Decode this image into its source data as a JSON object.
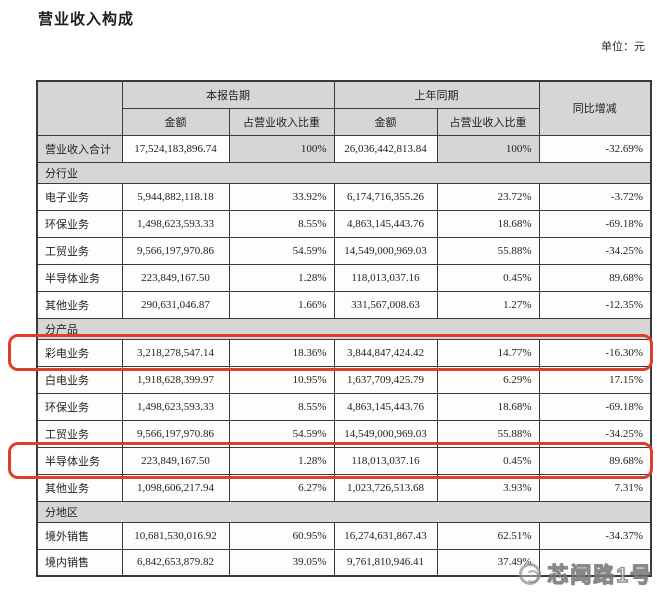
{
  "page": {
    "title": "营业收入构成",
    "unit_label": "单位：元"
  },
  "table": {
    "header": {
      "corner": "",
      "current_period": "本报告期",
      "prior_period": "上年同期",
      "yoy_change": "同比增减",
      "amount": "金额",
      "pct_of_revenue": "占营业收入比重"
    },
    "rows": [
      {
        "type": "total",
        "label": "营业收入合计",
        "amt1": "17,524,183,896.74",
        "pct1": "100%",
        "amt2": "26,036,442,813.84",
        "pct2": "100%",
        "chg": "-32.69%"
      },
      {
        "type": "section",
        "label": "分行业"
      },
      {
        "type": "data",
        "label": "电子业务",
        "amt1": "5,944,882,118.18",
        "pct1": "33.92%",
        "amt2": "6,174,716,355.26",
        "pct2": "23.72%",
        "chg": "-3.72%"
      },
      {
        "type": "data",
        "label": "环保业务",
        "amt1": "1,498,623,593.33",
        "pct1": "8.55%",
        "amt2": "4,863,145,443.76",
        "pct2": "18.68%",
        "chg": "-69.18%"
      },
      {
        "type": "data",
        "label": "工贸业务",
        "amt1": "9,566,197,970.86",
        "pct1": "54.59%",
        "amt2": "14,549,000,969.03",
        "pct2": "55.88%",
        "chg": "-34.25%"
      },
      {
        "type": "data",
        "label": "半导体业务",
        "amt1": "223,849,167.50",
        "pct1": "1.28%",
        "amt2": "118,013,037.16",
        "pct2": "0.45%",
        "chg": "89.68%"
      },
      {
        "type": "data",
        "label": "其他业务",
        "amt1": "290,631,046.87",
        "pct1": "1.66%",
        "amt2": "331,567,008.63",
        "pct2": "1.27%",
        "chg": "-12.35%"
      },
      {
        "type": "section",
        "label": "分产品"
      },
      {
        "type": "data",
        "label": "彩电业务",
        "amt1": "3,218,278,547.14",
        "pct1": "18.36%",
        "amt2": "3,844,847,424.42",
        "pct2": "14.77%",
        "chg": "-16.30%",
        "highlight": true
      },
      {
        "type": "data",
        "label": "白电业务",
        "amt1": "1,918,628,399.97",
        "pct1": "10.95%",
        "amt2": "1,637,709,425.79",
        "pct2": "6.29%",
        "chg": "17.15%"
      },
      {
        "type": "data",
        "label": "环保业务",
        "amt1": "1,498,623,593.33",
        "pct1": "8.55%",
        "amt2": "4,863,145,443.76",
        "pct2": "18.68%",
        "chg": "-69.18%"
      },
      {
        "type": "data",
        "label": "工贸业务",
        "amt1": "9,566,197,970.86",
        "pct1": "54.59%",
        "amt2": "14,549,000,969.03",
        "pct2": "55.88%",
        "chg": "-34.25%"
      },
      {
        "type": "data",
        "label": "半导体业务",
        "amt1": "223,849,167.50",
        "pct1": "1.28%",
        "amt2": "118,013,037.16",
        "pct2": "0.45%",
        "chg": "89.68%",
        "highlight": true
      },
      {
        "type": "data",
        "label": "其他业务",
        "amt1": "1,098,606,217.94",
        "pct1": "6.27%",
        "amt2": "1,023,726,513.68",
        "pct2": "3.93%",
        "chg": "7.31%"
      },
      {
        "type": "section",
        "label": "分地区"
      },
      {
        "type": "data",
        "label": "境外销售",
        "amt1": "10,681,530,016.92",
        "pct1": "60.95%",
        "amt2": "16,274,631,867.43",
        "pct2": "62.51%",
        "chg": "-34.37%"
      },
      {
        "type": "data",
        "label": "境内销售",
        "amt1": "6,842,653,879.82",
        "pct1": "39.05%",
        "amt2": "9,761,810,946.41",
        "pct2": "37.49%",
        "chg": ""
      }
    ]
  },
  "watermark": {
    "text": "芯闻路1号",
    "logo": "circular-emblem-icon"
  },
  "colors": {
    "highlight_red": "#e03e2c",
    "header_gray": "#d6d6d6",
    "border": "#3a3a3a",
    "cell_white": "#fdfdfd"
  }
}
